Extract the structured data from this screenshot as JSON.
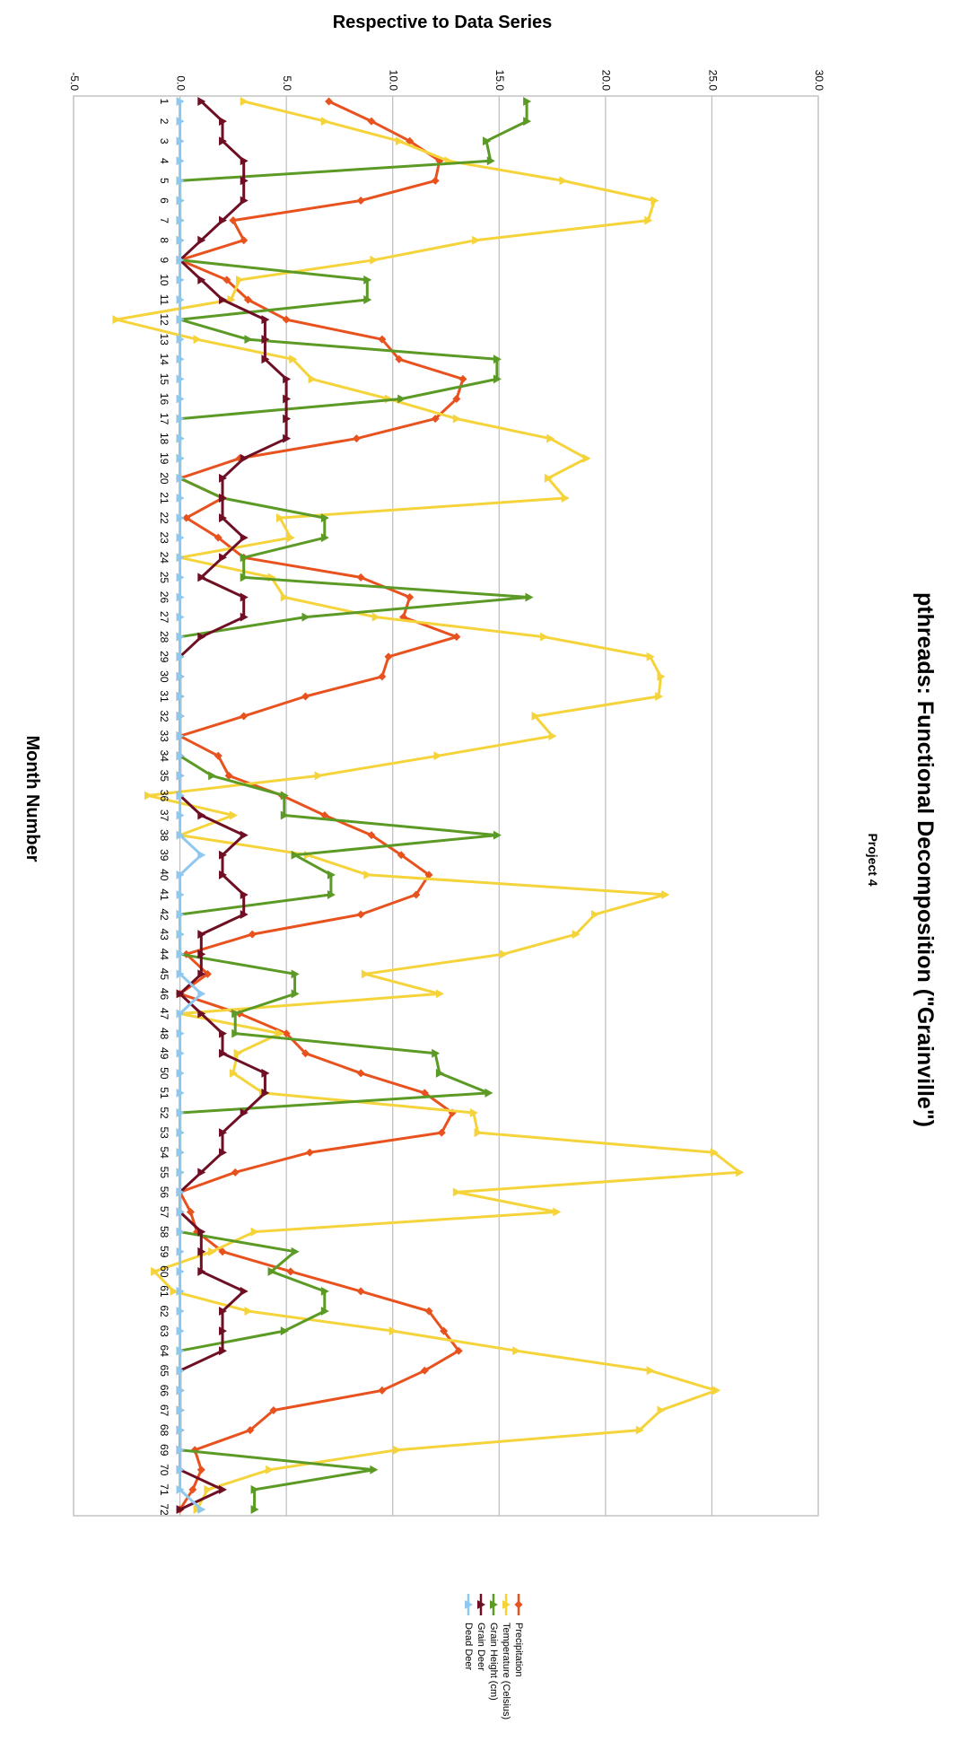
{
  "chart_data": {
    "type": "line",
    "title": "pthreads: Functional Decomposition (\"Grainville\")",
    "subtitle": "Project 4",
    "xlabel": "Month Number",
    "ylabel": "Respective to Data Series",
    "ylim": [
      -5,
      30
    ],
    "yticks": [
      -5,
      0,
      5,
      10,
      15,
      20,
      25,
      30
    ],
    "ytick_labels": [
      "-5.0",
      "0.0",
      "5.0",
      "10.0",
      "15.0",
      "20.0",
      "25.0",
      "30.0"
    ],
    "grid": true,
    "legend_position": "bottom",
    "x": [
      1,
      2,
      3,
      4,
      5,
      6,
      7,
      8,
      9,
      10,
      11,
      12,
      13,
      14,
      15,
      16,
      17,
      18,
      19,
      20,
      21,
      22,
      23,
      24,
      25,
      26,
      27,
      28,
      29,
      30,
      31,
      32,
      33,
      34,
      35,
      36,
      37,
      38,
      39,
      40,
      41,
      42,
      43,
      44,
      45,
      46,
      47,
      48,
      49,
      50,
      51,
      52,
      53,
      54,
      55,
      56,
      57,
      58,
      59,
      60,
      61,
      62,
      63,
      64,
      65,
      66,
      67,
      68,
      69,
      70,
      71,
      72
    ],
    "series": [
      {
        "name": "Precipitation",
        "color": "#e8521e",
        "marker": "diamond",
        "values": [
          7.0,
          9.0,
          10.8,
          12.2,
          12.0,
          8.5,
          2.5,
          3.0,
          0.0,
          2.2,
          3.2,
          5.0,
          9.5,
          10.3,
          13.3,
          13.0,
          12.0,
          8.3,
          2.8,
          0.0,
          2.0,
          0.3,
          1.8,
          3.0,
          8.5,
          10.8,
          10.5,
          13.0,
          9.8,
          9.5,
          5.9,
          3.0,
          0.0,
          1.8,
          2.3,
          4.8,
          6.8,
          9.0,
          10.4,
          11.7,
          11.1,
          8.5,
          3.4,
          0.3,
          1.3,
          0.0,
          2.8,
          5.0,
          5.9,
          8.5,
          11.5,
          12.8,
          12.3,
          6.1,
          2.6,
          0.0,
          0.5,
          0.8,
          2.0,
          5.2,
          8.5,
          11.7,
          12.4,
          13.1,
          11.5,
          9.5,
          4.4,
          3.3,
          0.7,
          1.0,
          0.6,
          0.0
        ]
      },
      {
        "name": "Temperature (Celsius)",
        "color": "#f5d33a",
        "marker": "triangle",
        "values": [
          3.0,
          6.8,
          10.3,
          12.6,
          18.0,
          22.3,
          22.0,
          13.9,
          9.1,
          2.8,
          2.4,
          -3.0,
          0.8,
          5.3,
          6.2,
          9.8,
          13.0,
          17.4,
          19.1,
          17.3,
          18.1,
          4.7,
          5.2,
          0.0,
          4.3,
          4.9,
          9.2,
          17.1,
          22.1,
          22.6,
          22.5,
          16.7,
          17.5,
          12.1,
          6.5,
          -1.5,
          2.5,
          0.0,
          6.0,
          8.8,
          22.8,
          19.5,
          18.6,
          15.2,
          8.7,
          12.2,
          0.0,
          4.7,
          2.7,
          2.5,
          3.9,
          13.8,
          14.0,
          25.1,
          26.3,
          13.0,
          17.7,
          3.5,
          1.5,
          -1.2,
          -0.3,
          3.2,
          10.0,
          15.8,
          22.1,
          25.2,
          22.6,
          21.6,
          10.2,
          4.2,
          1.3,
          0.8
        ]
      },
      {
        "name": "Grain Height (cm)",
        "color": "#5c9a26",
        "marker": "triangle",
        "values": [
          16.3,
          16.3,
          14.4,
          14.6,
          0.0,
          0.0,
          0.0,
          0.0,
          0.0,
          8.8,
          8.8,
          0.0,
          3.2,
          14.9,
          14.9,
          10.4,
          0.0,
          0.0,
          0.0,
          0.0,
          2.0,
          6.8,
          6.8,
          3.0,
          3.0,
          16.4,
          5.9,
          0.0,
          0.0,
          0.0,
          0.0,
          0.0,
          0.0,
          0.0,
          1.5,
          4.9,
          4.9,
          14.9,
          5.4,
          7.1,
          7.1,
          0.0,
          0.0,
          0.0,
          5.4,
          5.4,
          2.6,
          2.6,
          12.0,
          12.2,
          14.5,
          0.0,
          0.0,
          0.0,
          0.0,
          0.0,
          0.0,
          0.0,
          5.4,
          4.3,
          6.8,
          6.8,
          4.9,
          0.0,
          0.0,
          0.0,
          0.0,
          0.0,
          0.0,
          9.1,
          3.5,
          3.5
        ]
      },
      {
        "name": "Grain Deer",
        "color": "#6e0f24",
        "marker": "triangle",
        "values": [
          1.0,
          2.0,
          2.0,
          3.0,
          3.0,
          3.0,
          2.0,
          1.0,
          0.0,
          1.0,
          2.0,
          4.0,
          4.0,
          4.0,
          5.0,
          5.0,
          5.0,
          5.0,
          3.0,
          2.0,
          2.0,
          2.0,
          3.0,
          2.0,
          1.0,
          3.0,
          3.0,
          1.0,
          0.0,
          0.0,
          0.0,
          0.0,
          0.0,
          0.0,
          0.0,
          0.0,
          1.0,
          3.0,
          2.0,
          2.0,
          3.0,
          3.0,
          1.0,
          1.0,
          1.0,
          0.0,
          1.0,
          2.0,
          2.0,
          4.0,
          4.0,
          3.0,
          2.0,
          2.0,
          1.0,
          0.0,
          0.0,
          1.0,
          1.0,
          1.0,
          3.0,
          2.0,
          2.0,
          2.0,
          0.0,
          0.0,
          0.0,
          0.0,
          0.0,
          0.0,
          2.0,
          0.0
        ]
      },
      {
        "name": "Dead Deer",
        "color": "#8ec8ee",
        "marker": "triangle",
        "values": [
          0,
          0,
          0,
          0,
          0,
          0,
          0,
          0,
          0,
          0,
          0,
          0,
          0,
          0,
          0,
          0,
          0,
          0,
          0,
          0,
          0,
          0,
          0,
          0,
          0,
          0,
          0,
          0,
          0,
          0,
          0,
          0,
          0,
          0,
          0,
          0,
          0,
          0,
          1,
          0,
          0,
          0,
          0,
          0,
          0,
          1,
          0,
          0,
          0,
          0,
          0,
          0,
          0,
          0,
          0,
          0,
          0,
          0,
          0,
          0,
          0,
          0,
          0,
          0,
          0,
          0,
          0,
          0,
          0,
          0,
          0,
          1
        ]
      }
    ]
  }
}
